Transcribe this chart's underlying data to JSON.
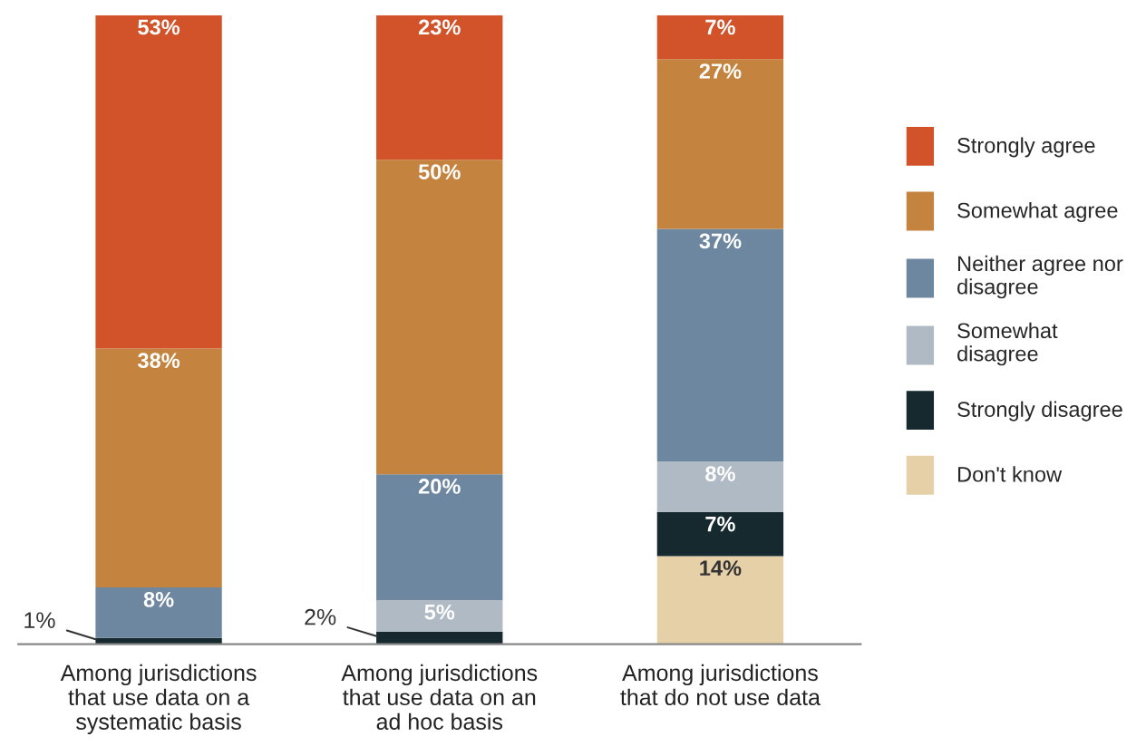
{
  "chart_data": {
    "type": "bar",
    "stacked": true,
    "legend": "right",
    "categories": [
      "Among jurisdictions\nthat use data on a\nsystematic basis",
      "Among jurisdictions\nthat use data on an\nad hoc basis",
      "Among jurisdictions\nthat do not use data"
    ],
    "series": [
      {
        "name": "Don't know",
        "color": "#e6d0a8",
        "values": [
          null,
          null,
          14
        ],
        "value_labels": [
          null,
          null,
          "14%"
        ]
      },
      {
        "name": "Strongly disagree",
        "color": "#15292f",
        "values": [
          1,
          2,
          7
        ],
        "value_labels": [
          "1%",
          "2%",
          "7%"
        ]
      },
      {
        "name": "Somewhat\ndisagree",
        "color": "#b0bac5",
        "values": [
          null,
          5,
          8
        ],
        "value_labels": [
          null,
          "5%",
          "8%"
        ]
      },
      {
        "name": "Neither agree nor\ndisagree",
        "color": "#6e87a0",
        "values": [
          8,
          20,
          37
        ],
        "value_labels": [
          "8%",
          "20%",
          "37%"
        ]
      },
      {
        "name": "Somewhat agree",
        "color": "#c4843f",
        "values": [
          38,
          50,
          27
        ],
        "value_labels": [
          "38%",
          "50%",
          "27%"
        ]
      },
      {
        "name": "Strongly agree",
        "color": "#d2522a",
        "values": [
          53,
          23,
          7
        ],
        "value_labels": [
          "53%",
          "23%",
          "7%"
        ]
      }
    ]
  }
}
